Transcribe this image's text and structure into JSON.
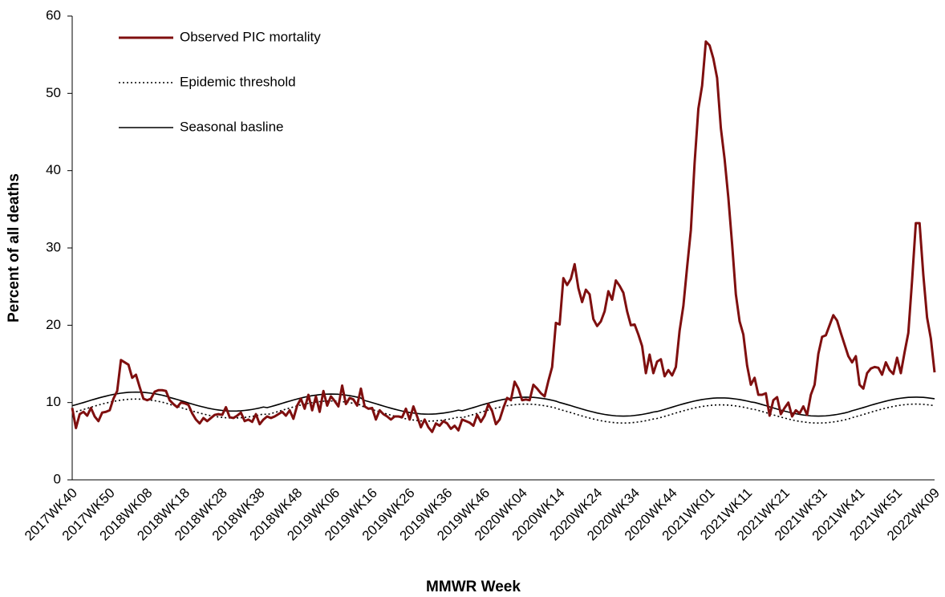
{
  "chart_data": {
    "type": "line",
    "xlabel": "MMWR Week",
    "ylabel": "Percent of all deaths",
    "ylim": [
      0,
      60
    ],
    "yticks": [
      0,
      10,
      20,
      30,
      40,
      50,
      60
    ],
    "grid": false,
    "legend": "upper left",
    "categories": [
      "2017WK40",
      null,
      null,
      null,
      null,
      null,
      null,
      null,
      null,
      null,
      "2017WK50",
      null,
      null,
      null,
      null,
      null,
      null,
      null,
      null,
      null,
      "2018WK08",
      null,
      null,
      null,
      null,
      null,
      null,
      null,
      null,
      null,
      "2018WK18",
      null,
      null,
      null,
      null,
      null,
      null,
      null,
      null,
      null,
      "2018WK28",
      null,
      null,
      null,
      null,
      null,
      null,
      null,
      null,
      null,
      "2018WK38",
      null,
      null,
      null,
      null,
      null,
      null,
      null,
      null,
      null,
      "2018WK48",
      null,
      null,
      null,
      null,
      null,
      null,
      null,
      null,
      null,
      "2019WK06",
      null,
      null,
      null,
      null,
      null,
      null,
      null,
      null,
      null,
      "2019WK16",
      null,
      null,
      null,
      null,
      null,
      null,
      null,
      null,
      null,
      "2019WK26",
      null,
      null,
      null,
      null,
      null,
      null,
      null,
      null,
      null,
      "2019WK36",
      null,
      null,
      null,
      null,
      null,
      null,
      null,
      null,
      null,
      "2019WK46",
      null,
      null,
      null,
      null,
      null,
      null,
      null,
      null,
      null,
      "2020WK04",
      null,
      null,
      null,
      null,
      null,
      null,
      null,
      null,
      null,
      "2020WK14",
      null,
      null,
      null,
      null,
      null,
      null,
      null,
      null,
      null,
      "2020WK24",
      null,
      null,
      null,
      null,
      null,
      null,
      null,
      null,
      null,
      "2020WK34",
      null,
      null,
      null,
      null,
      null,
      null,
      null,
      null,
      null,
      "2020WK44",
      null,
      null,
      null,
      null,
      null,
      null,
      null,
      null,
      null,
      "2021WK01",
      null,
      null,
      null,
      null,
      null,
      null,
      null,
      null,
      null,
      "2021WK11",
      null,
      null,
      null,
      null,
      null,
      null,
      null,
      null,
      null,
      "2021WK21",
      null,
      null,
      null,
      null,
      null,
      null,
      null,
      null,
      null,
      "2021WK31",
      null,
      null,
      null,
      null,
      null,
      null,
      null,
      null,
      null,
      "2021WK41",
      null,
      null,
      null,
      null,
      null,
      null,
      null,
      null,
      null,
      "2021WK51",
      null,
      null,
      null,
      null,
      null,
      null,
      null,
      null,
      null,
      "2022WK09"
    ],
    "series": [
      {
        "name": "Observed PIC mortality",
        "color": "#7f0f0f",
        "style": "solid",
        "values": [
          9.3,
          6.7,
          8.5,
          8.8,
          8.3,
          9.3,
          8.2,
          7.6,
          8.7,
          8.8,
          9.0,
          10.5,
          11.5,
          15.5,
          15.2,
          14.9,
          13.2,
          13.6,
          12.0,
          10.5,
          10.3,
          10.5,
          11.4,
          11.6,
          11.6,
          11.5,
          10.3,
          9.8,
          9.4,
          10.0,
          9.9,
          9.7,
          8.6,
          7.8,
          7.3,
          8.0,
          7.6,
          8.0,
          8.4,
          8.5,
          8.4,
          9.4,
          8.1,
          8.0,
          8.3,
          8.7,
          7.6,
          7.8,
          7.5,
          8.5,
          7.2,
          7.8,
          8.2,
          8.0,
          8.2,
          8.5,
          8.8,
          8.3,
          9.0,
          7.9,
          9.6,
          10.5,
          9.2,
          11.0,
          9.0,
          10.8,
          8.8,
          11.5,
          9.6,
          10.8,
          10.2,
          9.5,
          12.2,
          9.8,
          10.6,
          10.4,
          9.6,
          11.8,
          9.5,
          9.2,
          9.3,
          7.8,
          9.0,
          8.5,
          8.2,
          7.8,
          8.2,
          8.2,
          8.1,
          9.2,
          7.8,
          9.5,
          8.2,
          6.8,
          7.8,
          6.8,
          6.2,
          7.3,
          7.0,
          7.6,
          7.3,
          6.6,
          7.0,
          6.4,
          7.8,
          7.6,
          7.4,
          7.0,
          8.4,
          7.5,
          8.3,
          9.8,
          8.9,
          7.2,
          7.8,
          9.3,
          10.6,
          10.3,
          12.7,
          11.8,
          10.3,
          10.4,
          10.3,
          12.3,
          11.8,
          11.2,
          10.8,
          12.8,
          14.6,
          20.3,
          20.1,
          26.1,
          25.2,
          26.0,
          27.9,
          24.8,
          23.0,
          24.6,
          24.0,
          20.8,
          19.9,
          20.5,
          21.8,
          24.4,
          23.3,
          25.8,
          25.1,
          24.2,
          21.8,
          20.0,
          20.1,
          18.8,
          17.3,
          13.8,
          16.2,
          13.8,
          15.3,
          15.6,
          13.4,
          14.2,
          13.5,
          14.6,
          19.3,
          22.5,
          27.5,
          32.3,
          41.0,
          48.0,
          51.0,
          56.7,
          56.2,
          54.5,
          52.0,
          45.5,
          41.5,
          36.5,
          30.5,
          24.0,
          20.5,
          18.8,
          14.8,
          12.3,
          13.2,
          11.0,
          11.0,
          11.2,
          8.3,
          10.3,
          10.7,
          8.5,
          9.3,
          10.0,
          8.2,
          9.0,
          8.6,
          9.5,
          8.4,
          11.0,
          12.3,
          16.3,
          18.5,
          18.7,
          20.0,
          21.3,
          20.6,
          19.0,
          17.5,
          16.0,
          15.2,
          16.0,
          12.3,
          11.8,
          13.8,
          14.4,
          14.6,
          14.5,
          13.6,
          15.2,
          14.2,
          13.7,
          15.8,
          13.8,
          16.5,
          19.0,
          25.8,
          33.2,
          33.2,
          26.5,
          21.0,
          18.3,
          13.9
        ]
      },
      {
        "name": "Epidemic threshold",
        "color": "#000000",
        "style": "dotted",
        "values": [
          8.69,
          8.82,
          8.96,
          9.1,
          9.25,
          9.4,
          9.54,
          9.68,
          9.81,
          9.93,
          10.05,
          10.15,
          10.24,
          10.31,
          10.37,
          10.42,
          10.44,
          10.45,
          10.44,
          10.42,
          10.37,
          10.31,
          10.24,
          10.15,
          10.05,
          9.93,
          9.76,
          9.63,
          9.49,
          9.35,
          9.2,
          9.05,
          8.91,
          8.77,
          8.64,
          8.52,
          8.4,
          8.3,
          8.21,
          8.14,
          8.08,
          8.03,
          8.01,
          8.0,
          8.01,
          8.03,
          8.08,
          8.14,
          8.21,
          8.3,
          8.4,
          8.52,
          8.44,
          8.57,
          8.71,
          8.85,
          9.0,
          9.15,
          9.29,
          9.43,
          9.56,
          9.68,
          9.8,
          9.9,
          9.99,
          10.06,
          10.12,
          10.17,
          10.19,
          10.2,
          10.19,
          10.17,
          10.12,
          10.06,
          9.99,
          9.9,
          9.8,
          9.68,
          9.36,
          9.23,
          9.09,
          8.95,
          8.8,
          8.65,
          8.51,
          8.37,
          8.24,
          8.12,
          8.0,
          7.9,
          7.81,
          7.74,
          7.68,
          7.63,
          7.61,
          7.6,
          7.61,
          7.63,
          7.68,
          7.74,
          7.81,
          7.9,
          8.0,
          8.12,
          8.04,
          8.17,
          8.31,
          8.45,
          8.6,
          8.75,
          8.89,
          9.03,
          9.16,
          9.28,
          9.4,
          9.5,
          9.59,
          9.66,
          9.72,
          9.77,
          9.79,
          9.8,
          9.79,
          9.77,
          9.72,
          9.66,
          9.59,
          9.5,
          9.4,
          9.28,
          9.11,
          8.98,
          8.84,
          8.7,
          8.55,
          8.4,
          8.26,
          8.12,
          7.99,
          7.87,
          7.75,
          7.65,
          7.56,
          7.49,
          7.43,
          7.38,
          7.36,
          7.35,
          7.36,
          7.38,
          7.43,
          7.49,
          7.56,
          7.65,
          7.75,
          7.87,
          7.94,
          8.07,
          8.21,
          8.35,
          8.5,
          8.65,
          8.79,
          8.93,
          9.06,
          9.18,
          9.3,
          9.4,
          9.49,
          9.56,
          9.62,
          9.67,
          9.69,
          9.7,
          9.69,
          9.67,
          9.62,
          9.56,
          9.49,
          9.4,
          9.3,
          9.18,
          9.11,
          8.98,
          8.84,
          8.7,
          8.55,
          8.4,
          8.26,
          8.12,
          7.99,
          7.87,
          7.75,
          7.65,
          7.56,
          7.49,
          7.43,
          7.38,
          7.36,
          7.35,
          7.36,
          7.38,
          7.43,
          7.49,
          7.56,
          7.65,
          7.75,
          7.87,
          8.04,
          8.17,
          8.31,
          8.45,
          8.6,
          8.75,
          8.89,
          9.03,
          9.16,
          9.28,
          9.4,
          9.5,
          9.59,
          9.66,
          9.72,
          9.77,
          9.79,
          9.8,
          9.79,
          9.77,
          9.72,
          9.66,
          9.59
        ]
      },
      {
        "name": "Seasonal basline",
        "color": "#000000",
        "style": "solid",
        "values": [
          9.59,
          9.72,
          9.86,
          10.0,
          10.15,
          10.3,
          10.44,
          10.58,
          10.71,
          10.83,
          10.95,
          11.05,
          11.14,
          11.21,
          11.27,
          11.32,
          11.34,
          11.35,
          11.34,
          11.32,
          11.27,
          11.21,
          11.14,
          11.05,
          10.95,
          10.83,
          10.66,
          10.53,
          10.39,
          10.25,
          10.1,
          9.95,
          9.81,
          9.67,
          9.54,
          9.42,
          9.3,
          9.2,
          9.11,
          9.04,
          8.98,
          8.93,
          8.91,
          8.9,
          8.91,
          8.93,
          8.98,
          9.04,
          9.11,
          9.2,
          9.3,
          9.42,
          9.34,
          9.47,
          9.61,
          9.75,
          9.9,
          10.05,
          10.19,
          10.33,
          10.46,
          10.58,
          10.7,
          10.8,
          10.89,
          10.96,
          11.02,
          11.07,
          11.09,
          11.1,
          11.09,
          11.07,
          11.02,
          10.96,
          10.89,
          10.8,
          10.7,
          10.58,
          10.26,
          10.13,
          9.99,
          9.85,
          9.7,
          9.55,
          9.41,
          9.27,
          9.14,
          9.02,
          8.9,
          8.8,
          8.71,
          8.64,
          8.58,
          8.53,
          8.51,
          8.5,
          8.51,
          8.53,
          8.58,
          8.64,
          8.71,
          8.8,
          8.9,
          9.02,
          8.94,
          9.07,
          9.21,
          9.35,
          9.5,
          9.65,
          9.79,
          9.93,
          10.06,
          10.18,
          10.3,
          10.4,
          10.49,
          10.56,
          10.62,
          10.67,
          10.69,
          10.7,
          10.69,
          10.67,
          10.62,
          10.56,
          10.49,
          10.4,
          10.3,
          10.18,
          10.01,
          9.88,
          9.74,
          9.6,
          9.45,
          9.3,
          9.16,
          9.02,
          8.89,
          8.77,
          8.65,
          8.55,
          8.46,
          8.39,
          8.33,
          8.28,
          8.26,
          8.25,
          8.26,
          8.28,
          8.33,
          8.39,
          8.46,
          8.55,
          8.65,
          8.77,
          8.84,
          8.97,
          9.11,
          9.25,
          9.4,
          9.55,
          9.69,
          9.83,
          9.96,
          10.08,
          10.2,
          10.3,
          10.39,
          10.46,
          10.52,
          10.57,
          10.59,
          10.6,
          10.59,
          10.57,
          10.52,
          10.46,
          10.39,
          10.3,
          10.2,
          10.08,
          10.01,
          9.88,
          9.74,
          9.6,
          9.45,
          9.3,
          9.16,
          9.02,
          8.89,
          8.77,
          8.65,
          8.55,
          8.46,
          8.39,
          8.33,
          8.28,
          8.26,
          8.25,
          8.26,
          8.28,
          8.33,
          8.39,
          8.46,
          8.55,
          8.65,
          8.77,
          8.94,
          9.07,
          9.21,
          9.35,
          9.5,
          9.65,
          9.79,
          9.93,
          10.06,
          10.18,
          10.3,
          10.4,
          10.49,
          10.56,
          10.62,
          10.67,
          10.69,
          10.7,
          10.69,
          10.67,
          10.62,
          10.56,
          10.49
        ]
      }
    ]
  }
}
